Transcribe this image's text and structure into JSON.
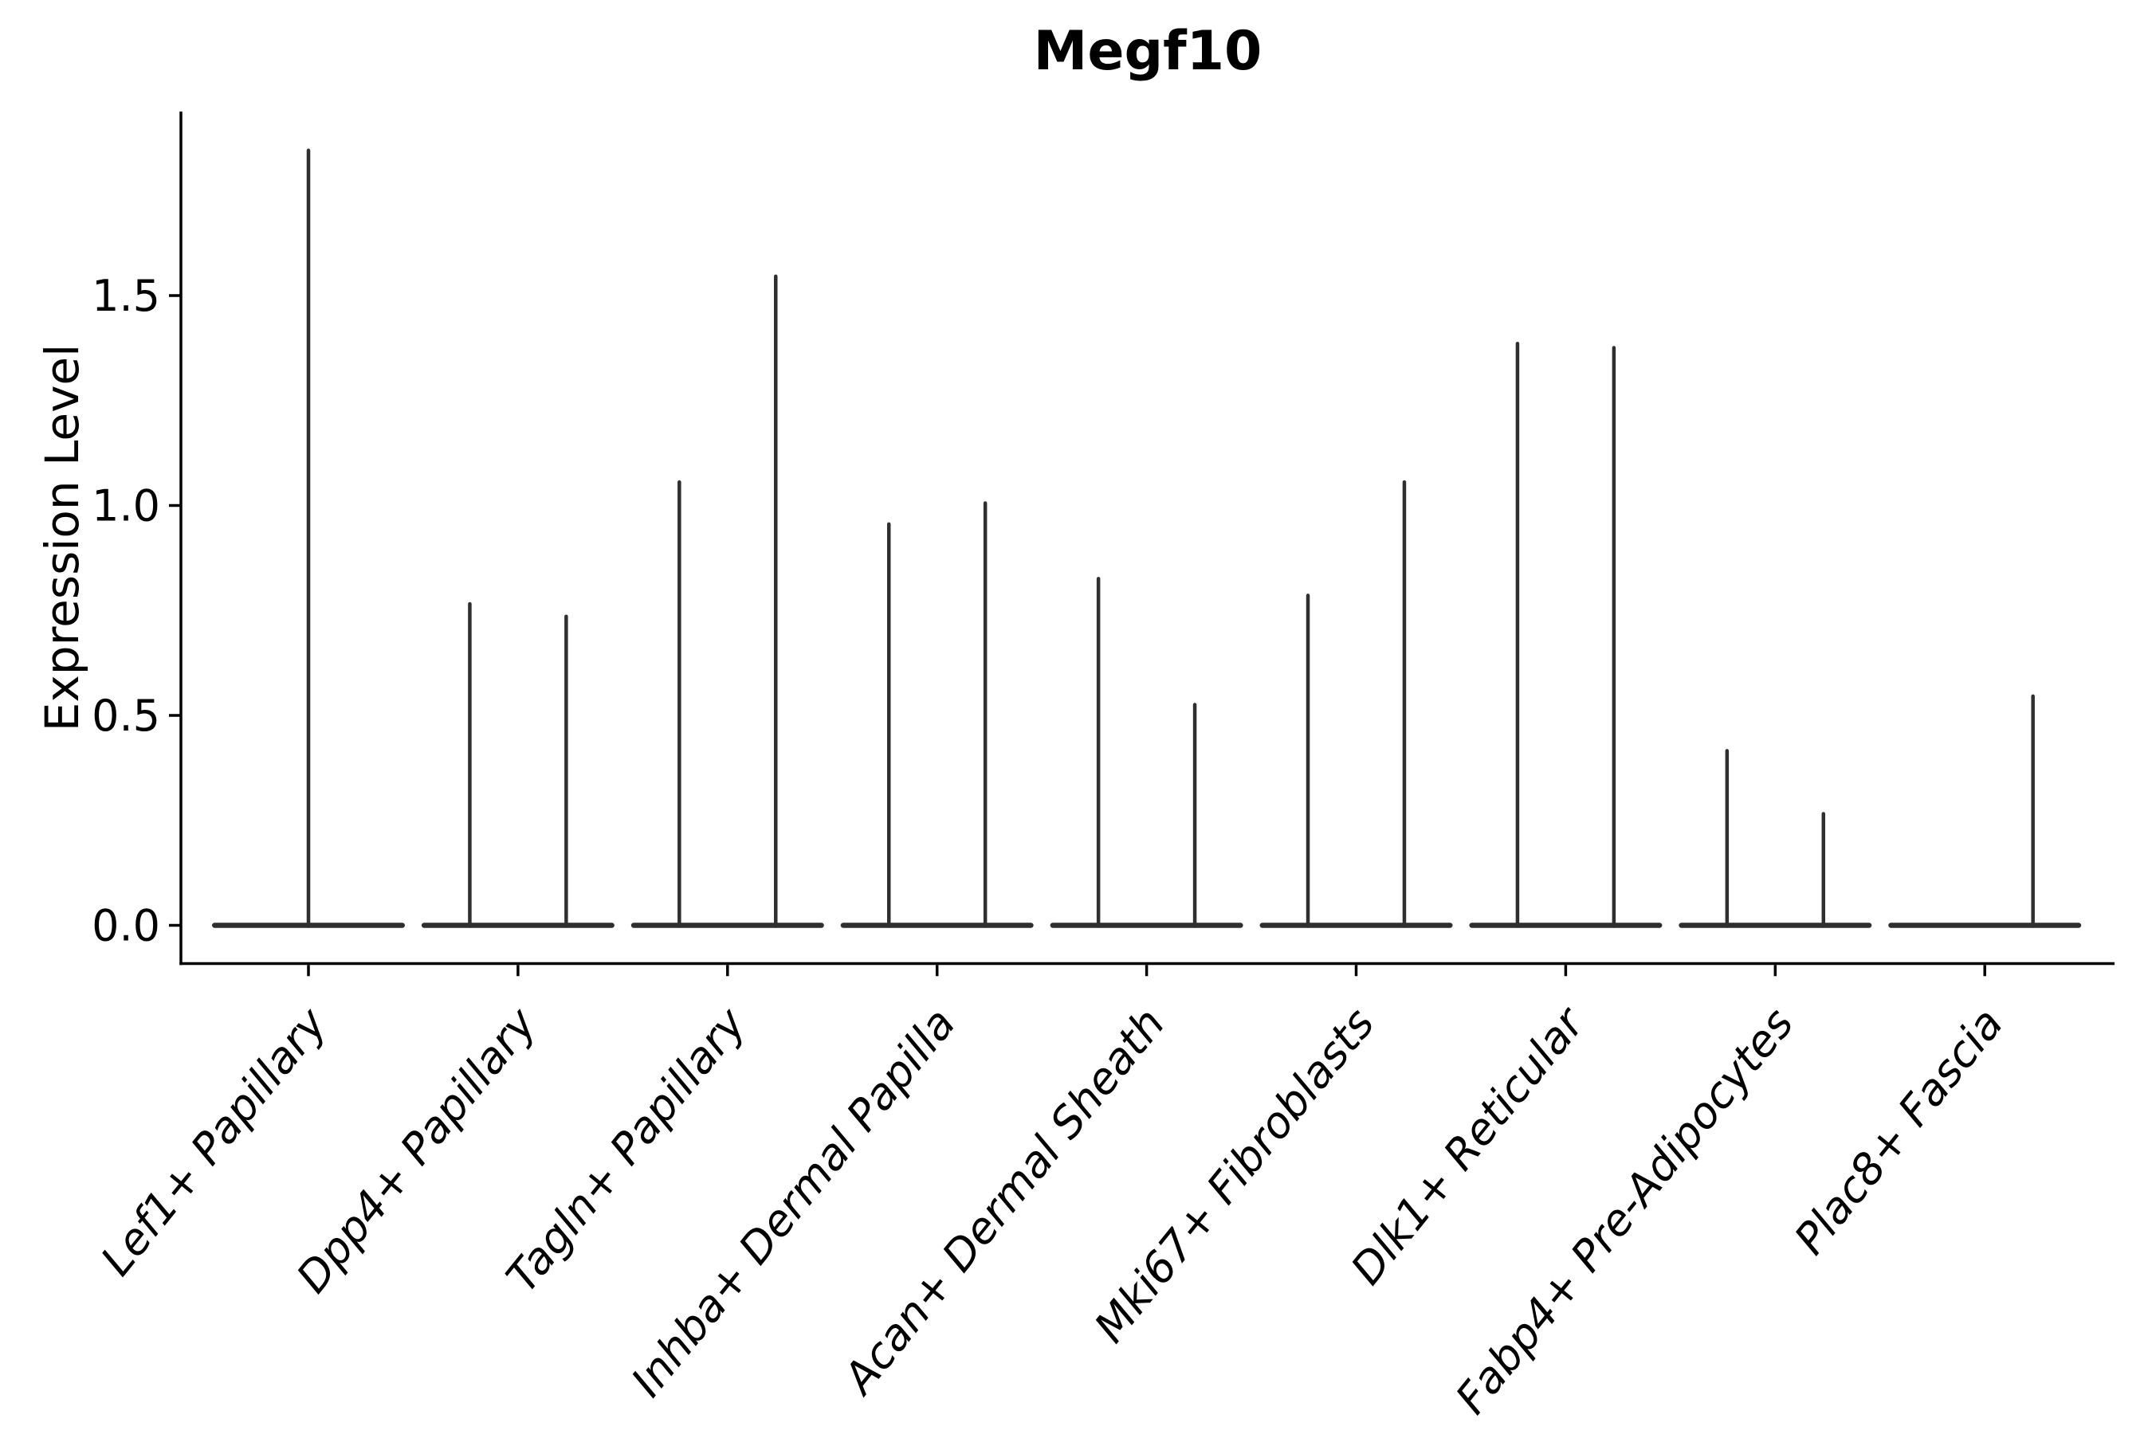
{
  "figure": {
    "title": "Megf10",
    "background_color": "#ffffff"
  },
  "chart_data": {
    "type": "violin",
    "title": "Megf10",
    "xlabel": "",
    "ylabel": "Expression Level",
    "yticks": [
      "0.0",
      "0.5",
      "1.0",
      "1.5"
    ],
    "ytick_values": [
      0.0,
      0.5,
      1.0,
      1.5
    ],
    "ylim": [
      -0.09,
      1.94
    ],
    "grid": false,
    "legend_position": "none",
    "categories": [
      "Lef1+ Papillary",
      "Dpp4+ Papillary",
      "Tagln+ Papillary",
      "Inhba+ Dermal Papilla",
      "Acan+ Dermal Sheath",
      "Mki67+ Fibroblasts",
      "Dlk1+ Reticular",
      "Fabp4+ Pre-Adipocytes",
      "Plac8+ Fascia"
    ],
    "violins": [
      {
        "category": "Lef1+ Papillary",
        "base_value": 0,
        "spikes": [
          {
            "offset": 0.0,
            "max": 1.85
          }
        ]
      },
      {
        "category": "Dpp4+ Papillary",
        "base_value": 0,
        "spikes": [
          {
            "offset": -0.23,
            "max": 0.77
          },
          {
            "offset": 0.23,
            "max": 0.74
          }
        ]
      },
      {
        "category": "Tagln+ Papillary",
        "base_value": 0,
        "spikes": [
          {
            "offset": -0.23,
            "max": 1.06
          },
          {
            "offset": 0.23,
            "max": 1.55
          }
        ]
      },
      {
        "category": "Inhba+ Dermal Papilla",
        "base_value": 0,
        "spikes": [
          {
            "offset": -0.23,
            "max": 0.96
          },
          {
            "offset": 0.23,
            "max": 1.01
          }
        ]
      },
      {
        "category": "Acan+ Dermal Sheath",
        "base_value": 0,
        "spikes": [
          {
            "offset": -0.23,
            "max": 0.83
          },
          {
            "offset": 0.23,
            "max": 0.53
          }
        ]
      },
      {
        "category": "Mki67+ Fibroblasts",
        "base_value": 0,
        "spikes": [
          {
            "offset": -0.23,
            "max": 0.79
          },
          {
            "offset": 0.23,
            "max": 1.06
          }
        ]
      },
      {
        "category": "Dlk1+ Reticular",
        "base_value": 0,
        "spikes": [
          {
            "offset": -0.23,
            "max": 1.39
          },
          {
            "offset": 0.23,
            "max": 1.38
          }
        ]
      },
      {
        "category": "Fabp4+ Pre-Adipocytes",
        "base_value": 0,
        "spikes": [
          {
            "offset": -0.23,
            "max": 0.42
          },
          {
            "offset": 0.23,
            "max": 0.27
          }
        ]
      },
      {
        "category": "Plac8+ Fascia",
        "base_value": 0,
        "spikes": [
          {
            "offset": 0.23,
            "max": 0.55
          }
        ]
      }
    ],
    "colors": {
      "violin": "#2f2f2f",
      "axis": "#000000",
      "text": "#000000"
    }
  }
}
